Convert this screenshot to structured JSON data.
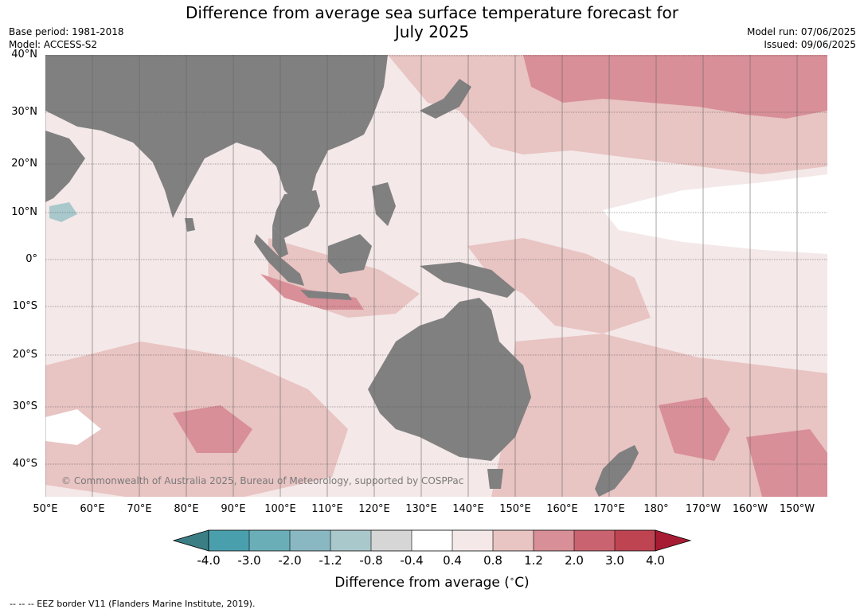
{
  "header": {
    "title_line1": "Difference from average sea surface temperature forecast for",
    "title_line2": "July 2025",
    "base_period": "Base period: 1981-2018",
    "model": "Model: ACCESS-S2",
    "model_run": "Model run: 07/06/2025",
    "issued": "Issued: 09/06/2025"
  },
  "map": {
    "lat_labels": [
      "40°N",
      "30°N",
      "20°N",
      "10°N",
      "0°",
      "10°S",
      "20°S",
      "30°S",
      "40°S"
    ],
    "lon_labels": [
      "50°E",
      "60°E",
      "70°E",
      "80°E",
      "90°E",
      "100°E",
      "110°E",
      "120°E",
      "130°E",
      "140°E",
      "150°E",
      "160°E",
      "170°E",
      "180°",
      "170°W",
      "160°W",
      "150°W"
    ],
    "copyright": "© Commonwealth of Australia 2025, Bureau of Meteorology, supported by COSPPac",
    "land_color": "#808080"
  },
  "colorbar": {
    "ticks": [
      "-4.0",
      "-3.0",
      "-2.0",
      "-1.2",
      "-0.8",
      "-0.4",
      "0.4",
      "0.8",
      "1.2",
      "2.0",
      "3.0",
      "4.0"
    ],
    "colors": [
      "#3b7f85",
      "#4a9fad",
      "#6aaeb8",
      "#8ab8c2",
      "#a9c8cb",
      "#d6d6d6",
      "#ffffff",
      "#f4e8e8",
      "#e8c4c3",
      "#d88f97",
      "#c9636f",
      "#bf4452",
      "#a81c33"
    ],
    "label": "Difference from average (",
    "label_unit": "C)",
    "label_degree": "∘"
  },
  "footer": {
    "eez": "--  --  -- EEZ border V11 (Flanders Marine Institute, 2019)."
  }
}
